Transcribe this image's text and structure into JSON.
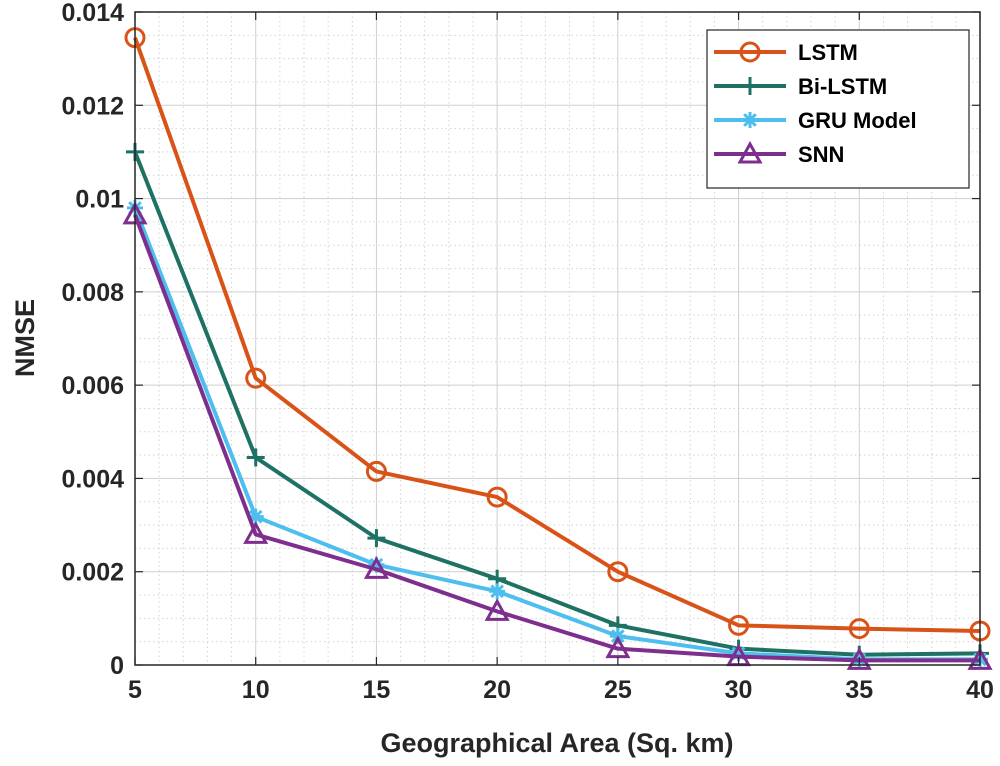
{
  "chart_data": {
    "type": "line",
    "title": "",
    "xlabel": "Geographical Area (Sq. km)",
    "ylabel": "NMSE",
    "x": [
      5,
      10,
      15,
      20,
      25,
      30,
      35,
      40
    ],
    "xlim": [
      5,
      40
    ],
    "ylim": [
      0,
      0.014
    ],
    "xticks": [
      5,
      10,
      15,
      20,
      25,
      30,
      35,
      40
    ],
    "xtick_labels": [
      "5",
      "10",
      "15",
      "20",
      "25",
      "30",
      "35",
      "40"
    ],
    "yticks": [
      0,
      0.002,
      0.004,
      0.006,
      0.008,
      0.01,
      0.012,
      0.014
    ],
    "ytick_labels": [
      "0",
      "0.002",
      "0.004",
      "0.006",
      "0.008",
      "0.01",
      "0.012",
      "0.014"
    ],
    "grid": true,
    "minor_grid": true,
    "legend_position": "top-right",
    "series": [
      {
        "name": "LSTM",
        "color": "#D95319",
        "marker": "circle",
        "values": [
          0.01345,
          0.00615,
          0.00415,
          0.0036,
          0.002,
          0.00085,
          0.00078,
          0.00073
        ]
      },
      {
        "name": "Bi-LSTM",
        "color": "#1E7264",
        "marker": "plus",
        "values": [
          0.011,
          0.00445,
          0.00272,
          0.00185,
          0.00085,
          0.00035,
          0.00022,
          0.00025
        ]
      },
      {
        "name": "GRU Model",
        "color": "#4DBEEE",
        "marker": "asterisk",
        "values": [
          0.0098,
          0.00318,
          0.00215,
          0.00158,
          0.00062,
          0.00025,
          0.00012,
          0.00012
        ]
      },
      {
        "name": "SNN",
        "color": "#7E2F8E",
        "marker": "triangle",
        "values": [
          0.00965,
          0.0028,
          0.00205,
          0.00115,
          0.00035,
          0.00018,
          0.0001,
          0.0001
        ]
      }
    ]
  }
}
